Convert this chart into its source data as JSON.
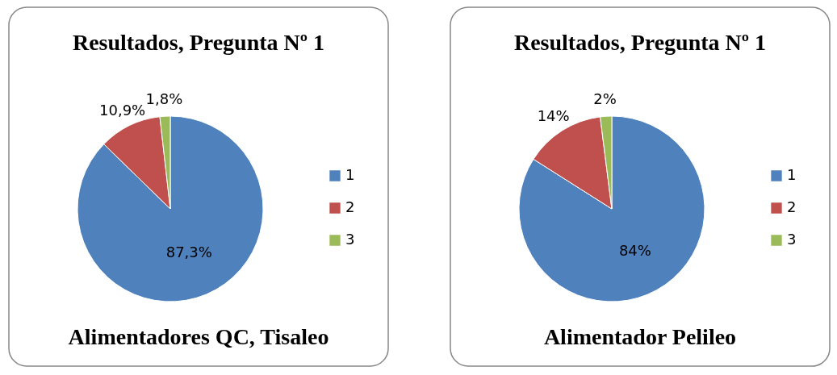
{
  "chart_data": [
    {
      "type": "pie",
      "title": "Resultados, Pregunta Nº 1",
      "categories": [
        "1",
        "2",
        "3"
      ],
      "values": [
        87.3,
        10.9,
        1.8
      ],
      "colors": [
        "#4f81bd",
        "#c0504d",
        "#9bbb59"
      ],
      "value_labels": [
        "87,3%",
        "10,9%",
        "1,8%"
      ],
      "annotations": [
        "Alimentadores QC, Tisaleo"
      ],
      "legend": "right"
    },
    {
      "type": "pie",
      "title": "Resultados, Pregunta Nº 1",
      "categories": [
        "1",
        "2",
        "3"
      ],
      "values": [
        84,
        14,
        2
      ],
      "colors": [
        "#4f81bd",
        "#c0504d",
        "#9bbb59"
      ],
      "value_labels": [
        "84%",
        "14%",
        "2%"
      ],
      "annotations": [
        "Alimentador Pelileo"
      ],
      "legend": "right"
    }
  ]
}
